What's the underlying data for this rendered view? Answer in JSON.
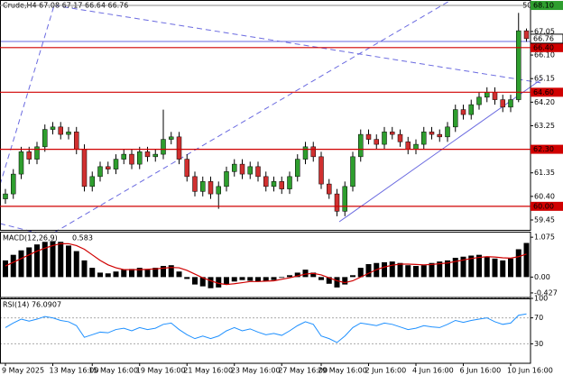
{
  "chart_data": [
    {
      "type": "candlestick",
      "title": "Crude,H4 67.08 67.17 66.64 66.76",
      "annotation": "50.0",
      "categories": [
        "9 May 2025",
        null,
        null,
        null,
        null,
        null,
        "13 May 16:00",
        null,
        null,
        null,
        null,
        "15 May 16:00",
        null,
        null,
        null,
        null,
        null,
        "19 May 16:00",
        null,
        null,
        null,
        null,
        null,
        "21 May 16:00",
        null,
        null,
        null,
        null,
        null,
        "23 May 16:00",
        null,
        null,
        null,
        null,
        null,
        "27 May 16:00",
        null,
        null,
        null,
        null,
        "29 May 16:00",
        null,
        null,
        null,
        null,
        null,
        "2 Jun 16:00",
        null,
        null,
        null,
        null,
        null,
        "4 Jun 16:00",
        null,
        null,
        null,
        null,
        null,
        "6 Jun 16:00",
        null,
        null,
        null,
        null,
        null,
        "10 Jun 16:00",
        null,
        null
      ],
      "open": [
        60.3,
        60.5,
        61.3,
        62.2,
        61.9,
        62.4,
        63.1,
        63.2,
        62.9,
        63.0,
        62.3,
        60.8,
        61.2,
        61.6,
        61.5,
        61.9,
        62.1,
        61.7,
        62.2,
        62.0,
        62.1,
        62.7,
        62.8,
        61.9,
        61.2,
        60.6,
        61.0,
        60.5,
        60.8,
        61.4,
        61.7,
        61.3,
        61.6,
        61.2,
        60.8,
        61.0,
        60.7,
        61.2,
        61.9,
        62.4,
        62.0,
        60.9,
        60.5,
        59.8,
        60.8,
        62.0,
        62.9,
        62.7,
        62.5,
        63.0,
        62.9,
        62.6,
        62.3,
        62.5,
        63.0,
        62.9,
        62.8,
        63.2,
        63.9,
        63.7,
        64.1,
        64.4,
        64.6,
        64.3,
        64.0,
        64.3,
        67.08
      ],
      "high": [
        60.7,
        61.5,
        62.4,
        62.4,
        62.6,
        63.3,
        63.4,
        63.4,
        63.2,
        63.2,
        62.5,
        61.4,
        61.8,
        61.8,
        62.1,
        62.3,
        62.3,
        62.4,
        62.4,
        62.3,
        63.9,
        63.0,
        63.0,
        62.1,
        61.4,
        61.2,
        61.2,
        61.0,
        61.6,
        61.9,
        61.9,
        61.8,
        61.8,
        61.4,
        61.2,
        61.2,
        61.4,
        62.1,
        62.6,
        62.6,
        62.2,
        61.1,
        60.7,
        61.0,
        62.2,
        63.1,
        63.1,
        62.9,
        63.2,
        63.2,
        63.1,
        62.8,
        62.7,
        63.2,
        63.2,
        63.1,
        63.4,
        64.1,
        64.1,
        64.3,
        64.6,
        64.8,
        64.8,
        64.5,
        64.5,
        67.8,
        67.17
      ],
      "low": [
        60.1,
        60.3,
        61.1,
        61.7,
        61.7,
        62.2,
        62.9,
        62.7,
        62.7,
        62.1,
        60.6,
        60.6,
        61.0,
        61.3,
        61.3,
        61.7,
        61.5,
        61.5,
        61.8,
        61.8,
        61.9,
        62.5,
        61.7,
        61.0,
        60.4,
        60.4,
        60.3,
        59.9,
        60.6,
        61.2,
        61.1,
        61.1,
        61.0,
        60.6,
        60.6,
        60.5,
        60.5,
        61.0,
        61.7,
        61.8,
        60.7,
        60.3,
        59.6,
        59.6,
        60.6,
        61.8,
        62.5,
        62.3,
        62.3,
        62.7,
        62.4,
        62.1,
        62.1,
        62.3,
        62.7,
        62.6,
        62.6,
        63.0,
        63.5,
        63.5,
        63.9,
        64.2,
        64.1,
        63.8,
        63.8,
        64.2,
        66.64
      ],
      "close": [
        60.5,
        61.3,
        62.2,
        61.9,
        62.4,
        63.1,
        63.2,
        62.9,
        63.0,
        62.3,
        60.8,
        61.2,
        61.6,
        61.5,
        61.9,
        62.1,
        61.7,
        62.2,
        62.0,
        62.1,
        62.7,
        62.8,
        61.9,
        61.2,
        60.6,
        61.0,
        60.5,
        60.8,
        61.4,
        61.7,
        61.3,
        61.6,
        61.2,
        60.8,
        61.0,
        60.7,
        61.2,
        61.9,
        62.4,
        62.0,
        60.9,
        60.5,
        59.8,
        60.8,
        62.0,
        62.9,
        62.7,
        62.5,
        63.0,
        62.9,
        62.6,
        62.3,
        62.5,
        63.0,
        62.9,
        62.8,
        63.2,
        63.9,
        63.7,
        64.1,
        64.4,
        64.6,
        64.3,
        64.0,
        64.3,
        67.08,
        66.76
      ],
      "up_color": "#2e9e2e",
      "down_color": "#d03030",
      "ylim": [
        59.05,
        68.32
      ],
      "yticks": [
        67.05,
        {
          "value": 66.1,
          "label": "66.10"
        },
        65.15,
        {
          "value": 64.2,
          "label": "64.20"
        },
        63.25,
        61.35,
        {
          "value": 60.4,
          "label": "60.40"
        },
        59.45
      ],
      "levels": [
        {
          "value": 68.1,
          "label": "68.10"
        },
        {
          "value": 66.4,
          "label": "66.40"
        },
        {
          "value": 64.6,
          "label": "64.60"
        },
        {
          "value": 62.3,
          "label": "62.30"
        },
        {
          "value": 60.0,
          "label": "60.00"
        }
      ],
      "level_colors": [
        "#2e9e2e",
        "#d00000",
        "#d00000",
        "#d00000",
        "#d00000"
      ],
      "current_price": 66.76
    },
    {
      "type": "macd",
      "title": "MACD(12,26,9)",
      "annotation": "0.583",
      "color": "#000000",
      "signal_color": "#d00000",
      "values": [
        0.45,
        0.6,
        0.72,
        0.8,
        0.88,
        0.95,
        0.97,
        0.95,
        0.85,
        0.7,
        0.45,
        0.25,
        0.12,
        0.1,
        0.15,
        0.2,
        0.22,
        0.25,
        0.2,
        0.25,
        0.3,
        0.32,
        0.15,
        -0.05,
        -0.2,
        -0.25,
        -0.3,
        -0.28,
        -0.2,
        -0.12,
        -0.08,
        -0.1,
        -0.12,
        -0.1,
        -0.08,
        -0.02,
        0.05,
        0.12,
        0.2,
        0.12,
        -0.08,
        -0.18,
        -0.28,
        -0.2,
        0.05,
        0.25,
        0.35,
        0.38,
        0.4,
        0.42,
        0.38,
        0.32,
        0.3,
        0.32,
        0.38,
        0.42,
        0.45,
        0.52,
        0.55,
        0.58,
        0.6,
        0.55,
        0.5,
        0.45,
        0.5,
        0.75,
        0.92
      ],
      "signal": [
        0.3,
        0.4,
        0.5,
        0.6,
        0.7,
        0.78,
        0.85,
        0.9,
        0.9,
        0.85,
        0.75,
        0.6,
        0.45,
        0.33,
        0.25,
        0.2,
        0.2,
        0.2,
        0.21,
        0.22,
        0.24,
        0.26,
        0.25,
        0.18,
        0.08,
        -0.02,
        -0.1,
        -0.17,
        -0.2,
        -0.18,
        -0.15,
        -0.12,
        -0.12,
        -0.11,
        -0.1,
        -0.06,
        -0.02,
        0.03,
        0.08,
        0.1,
        0.06,
        -0.02,
        -0.1,
        -0.15,
        -0.1,
        0.0,
        0.1,
        0.2,
        0.27,
        0.32,
        0.35,
        0.35,
        0.34,
        0.33,
        0.34,
        0.36,
        0.38,
        0.42,
        0.46,
        0.5,
        0.53,
        0.55,
        0.54,
        0.52,
        0.51,
        0.55,
        0.62
      ],
      "ylim": [
        -0.55,
        1.2
      ],
      "yticks": [
        1.075,
        {
          "value": 0,
          "label": "0.00"
        },
        -0.427
      ]
    },
    {
      "type": "line",
      "title": "RSI(14) 76.0907",
      "color": "#1e90ff",
      "values": [
        55,
        62,
        68,
        65,
        68,
        72,
        70,
        66,
        64,
        58,
        40,
        44,
        48,
        47,
        52,
        54,
        50,
        55,
        52,
        54,
        60,
        62,
        52,
        44,
        38,
        42,
        38,
        42,
        50,
        55,
        50,
        53,
        48,
        44,
        46,
        43,
        50,
        58,
        64,
        60,
        42,
        38,
        32,
        42,
        55,
        62,
        60,
        58,
        62,
        60,
        56,
        52,
        54,
        58,
        56,
        55,
        60,
        66,
        63,
        66,
        68,
        70,
        64,
        60,
        62,
        74,
        76.0907
      ],
      "ylim": [
        0,
        100
      ],
      "yticks": [
        100,
        70,
        30
      ]
    }
  ]
}
